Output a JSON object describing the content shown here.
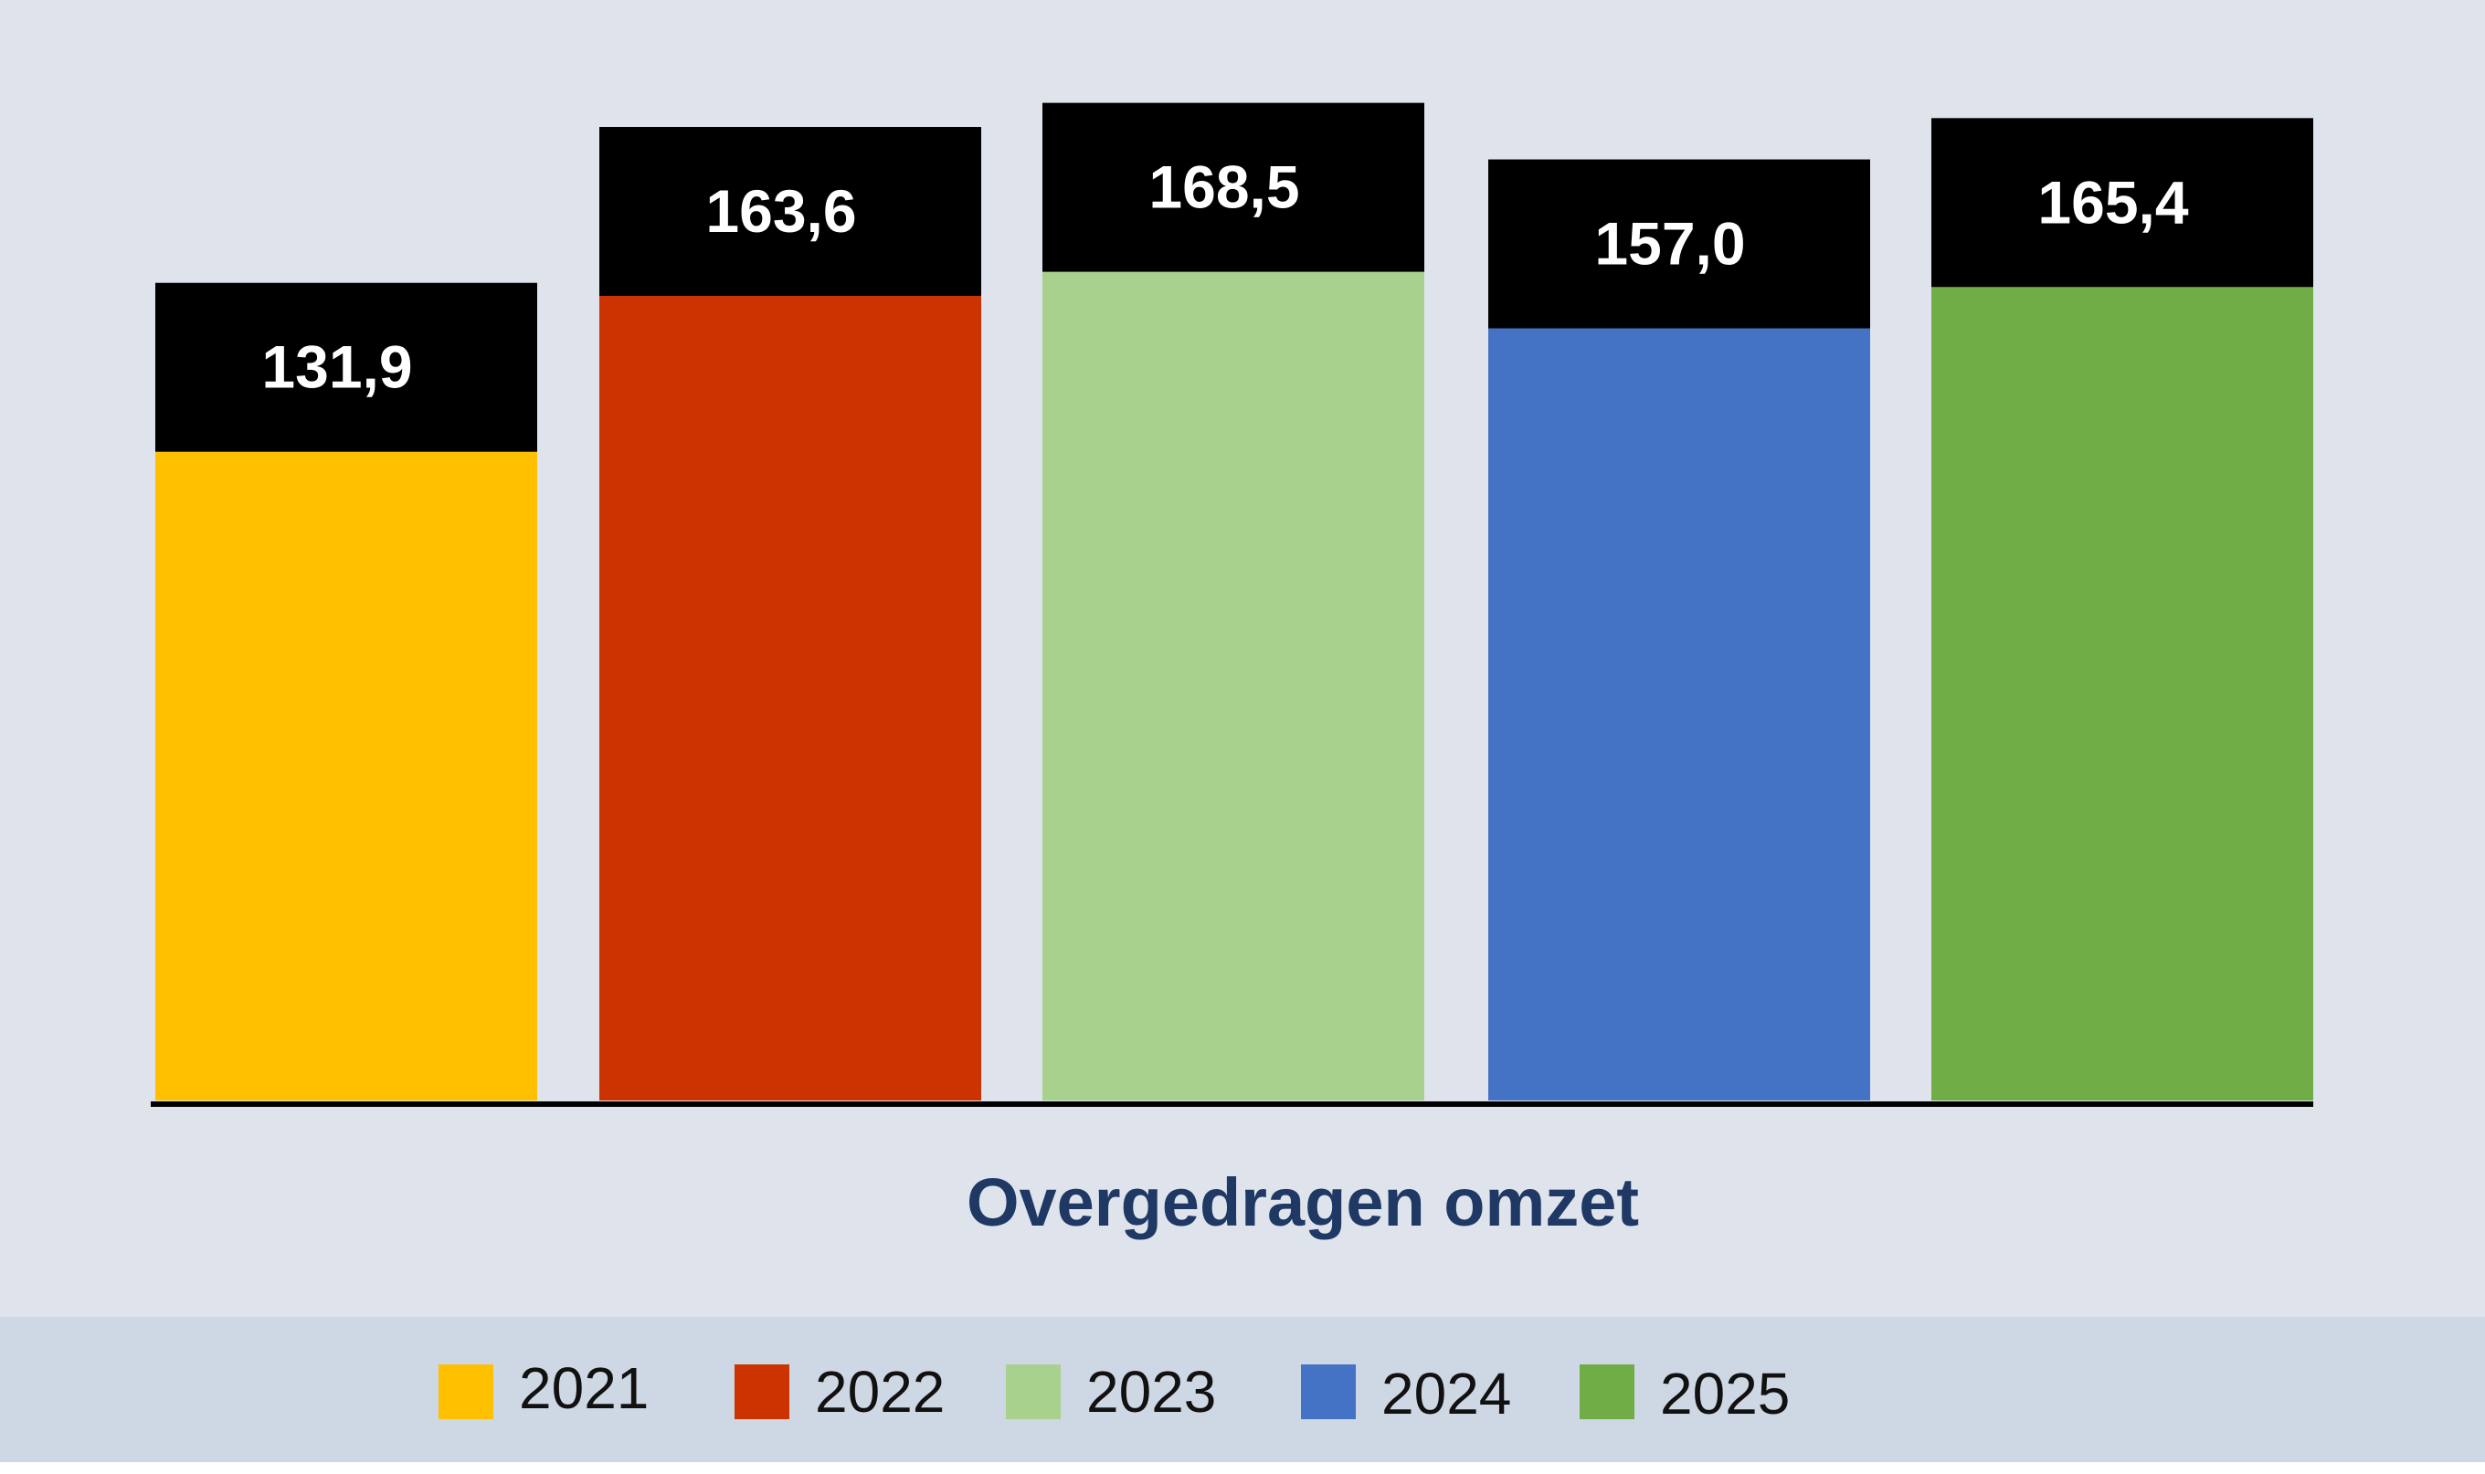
{
  "chart_data": {
    "type": "bar",
    "categories": [
      "Overgedragen omzet"
    ],
    "series": [
      {
        "name": "2021",
        "values": [
          131.9
        ],
        "label": "131,9",
        "color": "#ffc000"
      },
      {
        "name": "2022",
        "values": [
          163.6
        ],
        "label": "163,6",
        "color": "#cc3300"
      },
      {
        "name": "2023",
        "values": [
          168.5
        ],
        "label": "168,5",
        "color": "#a9d18e"
      },
      {
        "name": "2024",
        "values": [
          157.0
        ],
        "label": "157,0",
        "color": "#4472c4"
      },
      {
        "name": "2025",
        "values": [
          165.4
        ],
        "label": "165,4",
        "color": "#70ad47"
      }
    ],
    "xlabel": "Overgedragen omzet",
    "ylabel": "",
    "ylim": [
      0,
      180
    ],
    "grid": false,
    "legend": "bottom",
    "label_box_color": "#000000",
    "background_color": "#dfe4ec",
    "legend_band_color": "#ced7e4"
  }
}
